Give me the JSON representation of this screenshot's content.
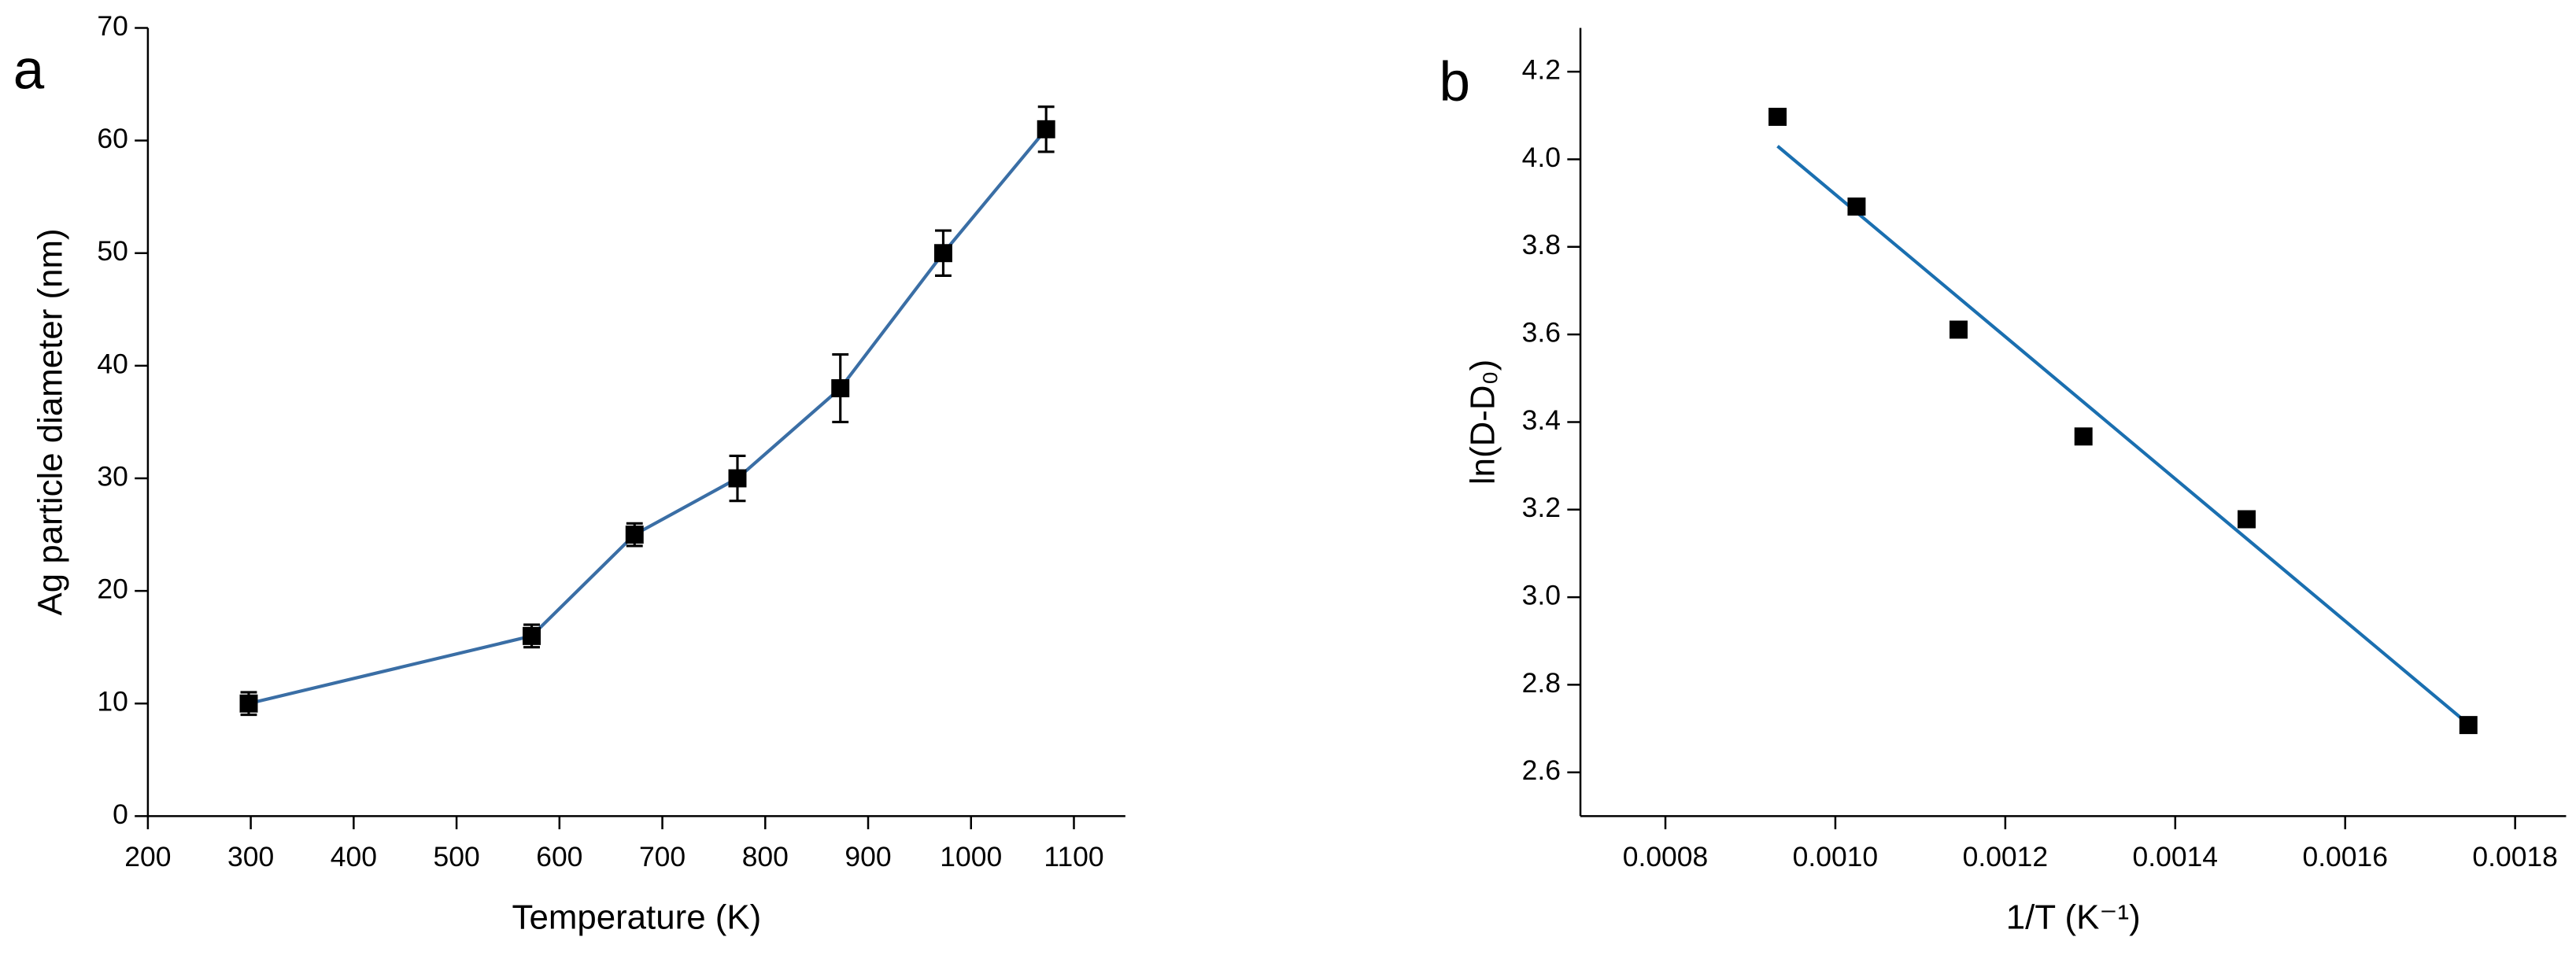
{
  "chart_data": [
    {
      "type": "line",
      "panel_label": "a",
      "xlabel": "Temperature (K)",
      "ylabel": "Ag particle diameter (nm)",
      "series": [
        {
          "color": "#3a6ea5",
          "x": [
            298,
            573,
            673,
            773,
            873,
            973,
            1073
          ],
          "values": [
            10,
            16,
            25,
            30,
            38,
            50,
            61
          ],
          "errors": [
            1,
            1,
            1,
            2,
            3,
            2,
            2
          ]
        }
      ],
      "xlim": [
        200,
        1150
      ],
      "xticks": [
        200,
        300,
        400,
        500,
        600,
        700,
        800,
        900,
        1000,
        1100
      ],
      "ylim": [
        0,
        70
      ],
      "yticks": [
        0,
        10,
        20,
        30,
        40,
        50,
        60,
        70
      ]
    },
    {
      "type": "scatter",
      "panel_label": "b",
      "xlabel": "1/T (K⁻¹)",
      "ylabel": "ln(D-D₀)",
      "series": [
        {
          "color": "#000000",
          "x": [
            0.000932,
            0.001025,
            0.001145,
            0.001292,
            0.001484,
            0.001745
          ],
          "values": [
            4.097,
            3.892,
            3.611,
            3.367,
            3.178,
            2.708
          ]
        }
      ],
      "fit_line": {
        "color": "#1a6fb0",
        "x": [
          0.000932,
          0.001745
        ],
        "values": [
          4.03,
          2.71
        ]
      },
      "xlim": [
        0.0007,
        0.00186
      ],
      "xticks": [
        {
          "value": 0.0008,
          "label": "0.0008"
        },
        {
          "value": 0.001,
          "label": "0.0010"
        },
        {
          "value": 0.0012,
          "label": "0.0012"
        },
        {
          "value": 0.0014,
          "label": "0.0014"
        },
        {
          "value": 0.0016,
          "label": "0.0016"
        },
        {
          "value": 0.0018,
          "label": "0.0018"
        }
      ],
      "ylim": [
        2.5,
        4.3
      ],
      "yticks": [
        2.6,
        2.8,
        {
          "value": 3,
          "label": "3.0"
        },
        3.2,
        3.4,
        3.6,
        3.8,
        {
          "value": 4,
          "label": "4.0"
        },
        4.2
      ]
    }
  ]
}
